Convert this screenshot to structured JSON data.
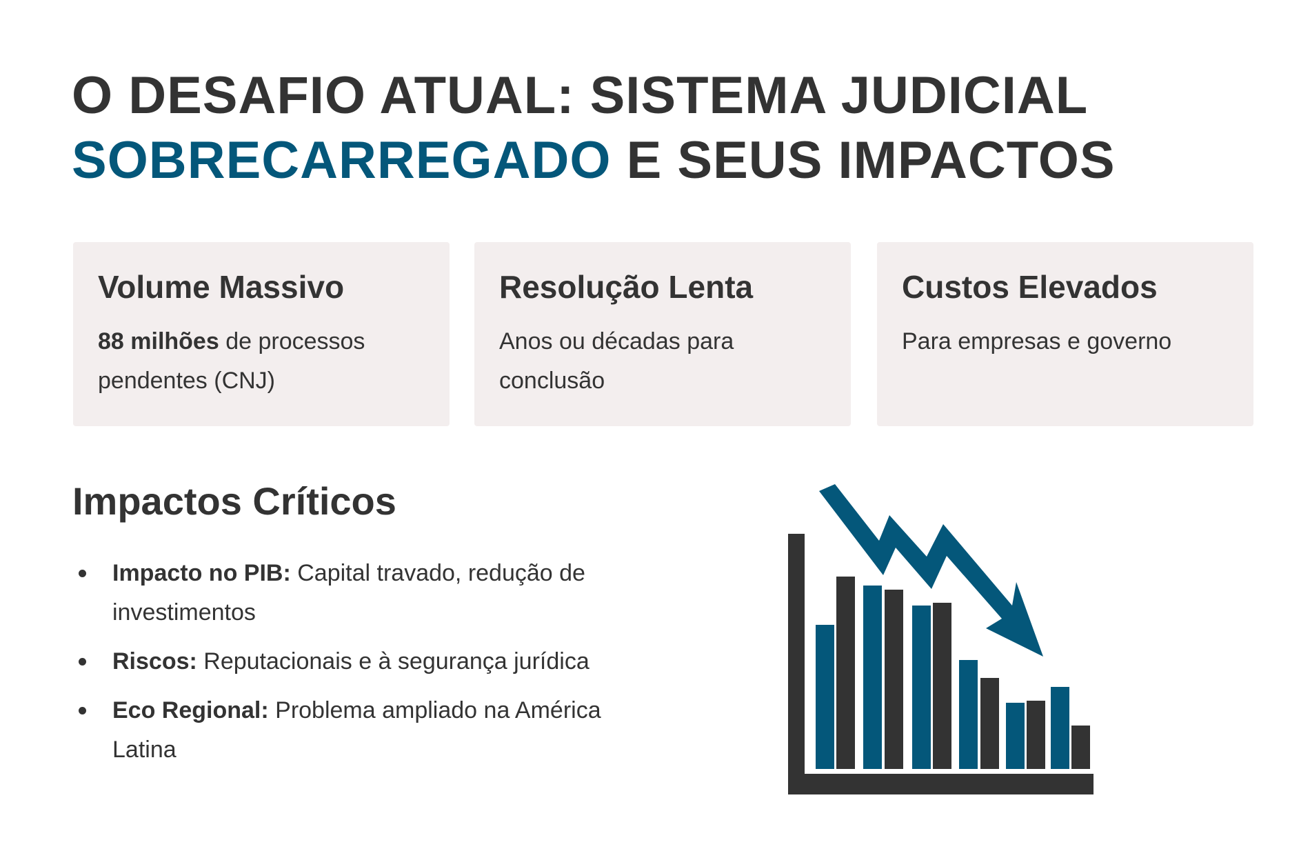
{
  "title": {
    "line1": "O DESAFIO ATUAL: SISTEMA JUDICIAL",
    "accent": "SOBRECARREGADO",
    "line2_rest": " E SEUS IMPACTOS"
  },
  "cards": [
    {
      "title": "Volume Massivo",
      "bold": "88 milhões",
      "text": " de processos pendentes (CNJ)"
    },
    {
      "title": "Resolução Lenta",
      "bold": "",
      "text": "Anos ou décadas para conclusão"
    },
    {
      "title": "Custos Elevados",
      "bold": "",
      "text": "Para empresas e governo"
    }
  ],
  "impacts": {
    "title": "Impactos Críticos",
    "items": [
      {
        "label": "Impacto no PIB:",
        "text": " Capital travado, redução de investimentos"
      },
      {
        "label": "Riscos:",
        "text": " Reputacionais e à segurança jurídica"
      },
      {
        "label": "Eco Regional:",
        "text": " Problema ampliado na América Latina"
      }
    ]
  },
  "illustration": {
    "icon": "declining-bar-chart-with-down-arrow",
    "colors": {
      "accent": "#04577a",
      "dark": "#333333"
    }
  },
  "colors": {
    "accent": "#04577a",
    "text": "#333333",
    "card_bg": "#f3eeee"
  }
}
